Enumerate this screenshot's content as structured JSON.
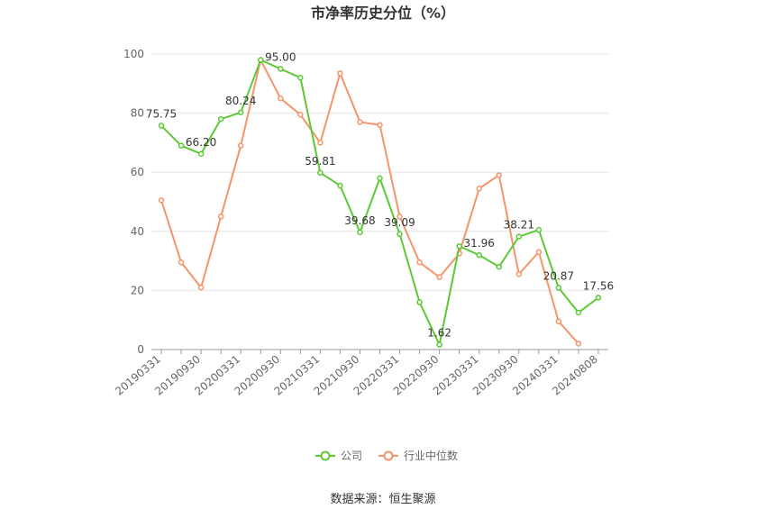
{
  "chart_data": {
    "type": "line",
    "title": "市净率历史分位（%）",
    "xlabel": "",
    "ylabel": "",
    "ylim": [
      0,
      100
    ],
    "y_ticks": [
      0,
      20,
      40,
      60,
      80,
      100
    ],
    "x": [
      "20190331",
      "20190630",
      "20190930",
      "20191231",
      "20200331",
      "20200630",
      "20200930",
      "20201231",
      "20210331",
      "20210630",
      "20210930",
      "20211231",
      "20220331",
      "20220630",
      "20220930",
      "20221231",
      "20230331",
      "20230630",
      "20230930",
      "20231231",
      "20240331",
      "20240630",
      "20240808"
    ],
    "x_tick_labels": [
      "20190331",
      "20190930",
      "20200331",
      "20200930",
      "20210331",
      "20210930",
      "20220331",
      "20220930",
      "20230331",
      "20230930",
      "20240331",
      "20240808"
    ],
    "grid": true,
    "legend_position": "bottom",
    "series": [
      {
        "name": "公司",
        "color": "#5cc935",
        "values": [
          75.75,
          69,
          66.2,
          78,
          80.24,
          98,
          95.0,
          92,
          59.81,
          55.5,
          39.68,
          58,
          39.09,
          16,
          1.62,
          35,
          31.96,
          28,
          38.21,
          40.5,
          20.87,
          12.5,
          17.56
        ],
        "labels": {
          "0": "75.75",
          "2": "66.20",
          "4": "80.24",
          "6": "95.00",
          "8": "59.81",
          "10": "39.68",
          "12": "39.09",
          "14": "1.62",
          "16": "31.96",
          "18": "38.21",
          "20": "20.87",
          "22": "17.56"
        }
      },
      {
        "name": "行业中位数",
        "color": "#f5946a",
        "values": [
          50.5,
          29.5,
          21,
          45,
          69,
          98,
          85,
          79.5,
          70,
          93.5,
          77,
          76,
          45,
          29.5,
          24.5,
          32.5,
          54.5,
          59,
          25.5,
          33,
          9.5,
          2,
          null
        ]
      }
    ],
    "source": "数据来源：恒生聚源"
  }
}
